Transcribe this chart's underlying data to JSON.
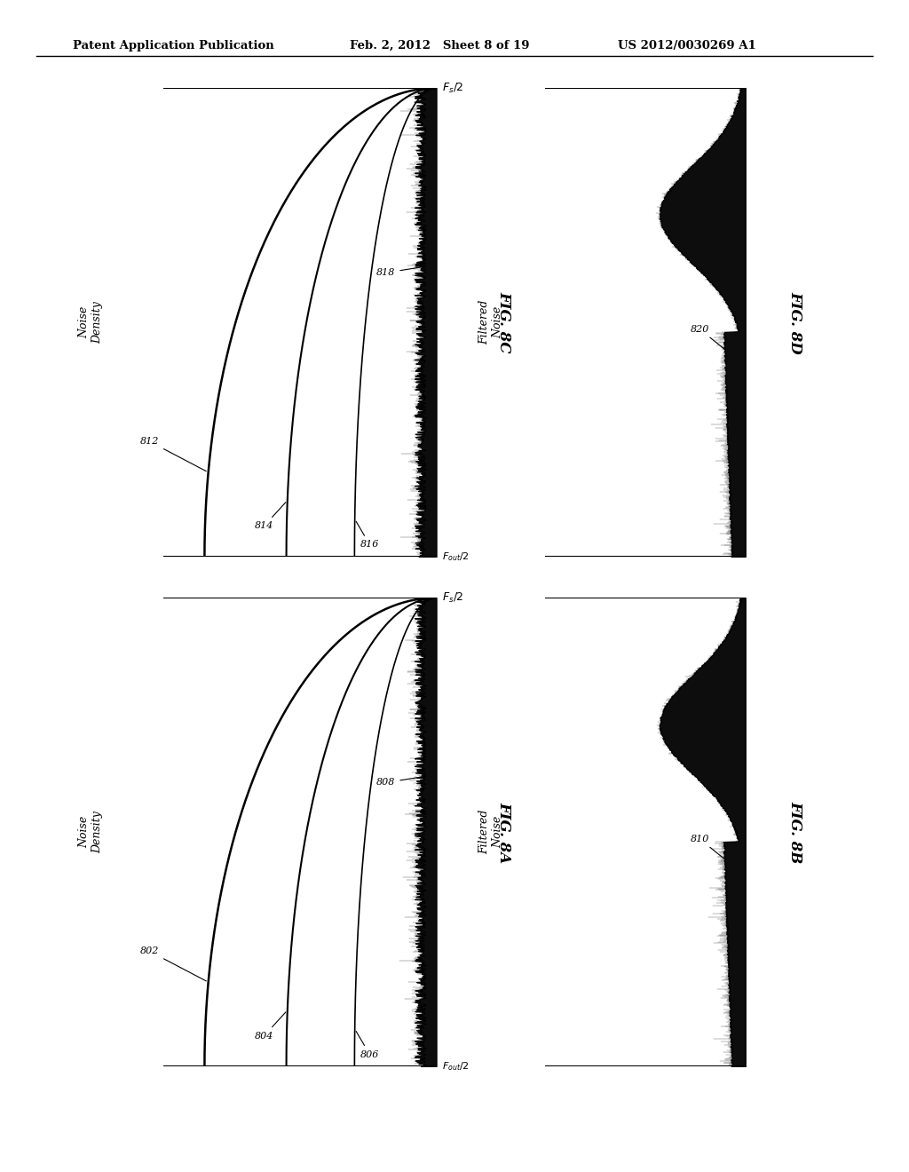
{
  "header_left": "Patent Application Publication",
  "header_mid": "Feb. 2, 2012   Sheet 8 of 19",
  "header_right": "US 2012/0030269 A1",
  "fig_8c_label": "FIG. 8C",
  "fig_8d_label": "FIG. 8D",
  "fig_8a_label": "FIG. 8A",
  "fig_8b_label": "FIG. 8B",
  "y_label_left": "Noise\nDensity",
  "y_label_right": "Filtered\nNoise",
  "labels_8C": [
    "812",
    "814",
    "816",
    "818"
  ],
  "labels_8A": [
    "802",
    "804",
    "806",
    "808"
  ],
  "label_8D": "820",
  "label_8B": "810",
  "bg_color": "#ffffff",
  "line_color": "#000000"
}
